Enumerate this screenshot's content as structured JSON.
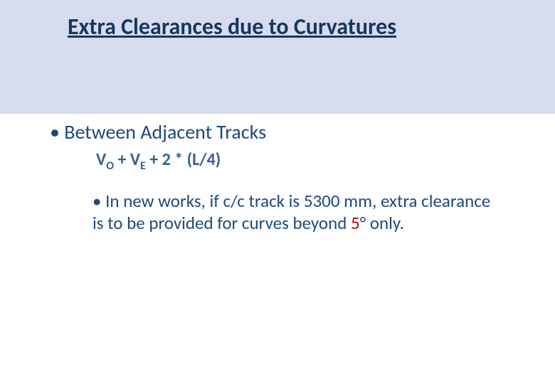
{
  "colors": {
    "top_band_bg": "#d6dcee",
    "title_color": "#17375e",
    "bullet1_color": "#1f497d",
    "formula_color": "#376091",
    "body_text_color": "#1f497d",
    "accent_red": "#c00000",
    "page_bg": "#ffffff"
  },
  "title": "Extra Clearances due to Curvatures",
  "bullet1": "Between Adjacent Tracks",
  "formula": {
    "v": "V",
    "sub_o": "O",
    "plus": " +  ",
    "sub_e": "E",
    "tail": " +  2 * (L/4)"
  },
  "bullet2": {
    "lead": "In new works, if c/c track is 5300 mm, extra clearance is to be provided for curves beyond ",
    "five": "5",
    "degree_tail": "° only."
  }
}
